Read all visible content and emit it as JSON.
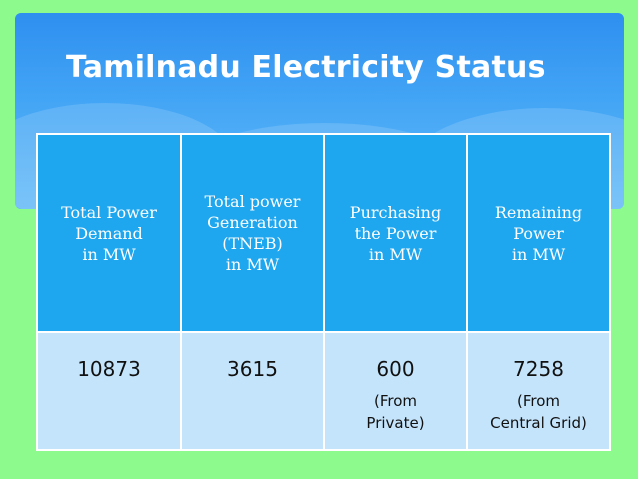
{
  "slide": {
    "title": "Tamilnadu Electricity Status"
  },
  "table": {
    "headers": [
      "Total Power\nDemand\nin MW",
      "Total power\nGeneration\n(TNEB)\nin MW",
      "Purchasing\nthe Power\nin MW",
      "Remaining\nPower\nin MW"
    ],
    "values": [
      "10873",
      "3615",
      "600",
      "7258"
    ],
    "notes": [
      "",
      "",
      "(From\nPrivate)",
      "(From\nCentral Grid)"
    ]
  },
  "colors": {
    "background": "#8cfa8c",
    "title_panel": "#3a9cf2",
    "header_cell": "#1ea6ee",
    "body_cell": "#c4e4fb",
    "border": "#ffffff"
  }
}
